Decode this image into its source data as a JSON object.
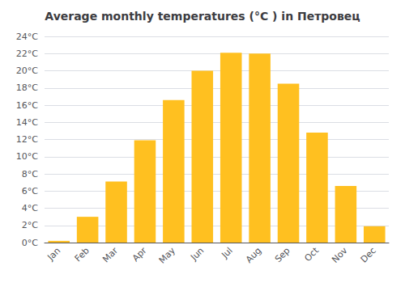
{
  "chart_data": {
    "type": "bar",
    "title": "Average monthly temperatures (°C ) in Петровец",
    "categories": [
      "Jan",
      "Feb",
      "Mar",
      "Apr",
      "May",
      "Jun",
      "Jul",
      "Aug",
      "Sep",
      "Oct",
      "Nov",
      "Dec"
    ],
    "values": [
      0.2,
      3.0,
      7.1,
      11.9,
      16.6,
      20.0,
      22.1,
      22.0,
      18.5,
      12.8,
      6.6,
      1.9
    ],
    "color": "#FFC020",
    "ylim": [
      0,
      24
    ],
    "yticks": [
      {
        "value": 0,
        "label": "0°C"
      },
      {
        "value": 2,
        "label": "2°C"
      },
      {
        "value": 4,
        "label": "4°C"
      },
      {
        "value": 6,
        "label": "6°C"
      },
      {
        "value": 8,
        "label": "8°C"
      },
      {
        "value": 10,
        "label": "10°C"
      },
      {
        "value": 12,
        "label": "12°C"
      },
      {
        "value": 14,
        "label": "14°C"
      },
      {
        "value": 16,
        "label": "16°C"
      },
      {
        "value": 18,
        "label": "18°C"
      },
      {
        "value": 20,
        "label": "20°C"
      },
      {
        "value": 22,
        "label": "22°C"
      },
      {
        "value": 24,
        "label": "24°C"
      }
    ],
    "grid": true
  }
}
